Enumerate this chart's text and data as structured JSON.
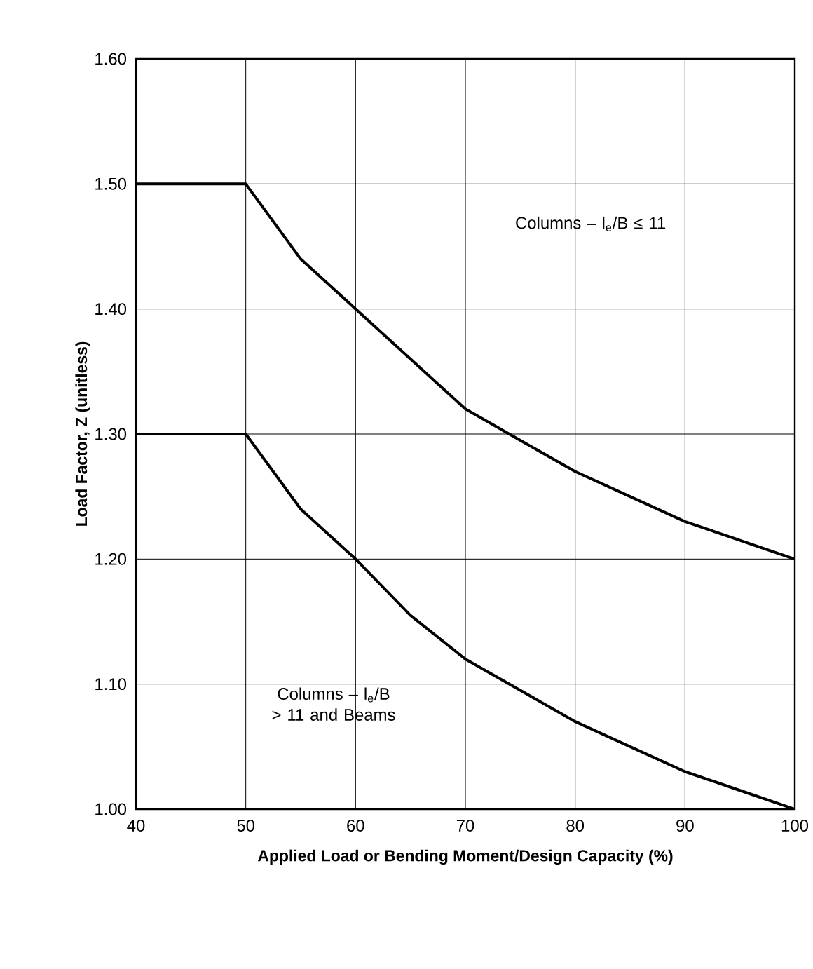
{
  "chart_data": {
    "type": "line",
    "xlabel": "Applied Load or Bending Moment/Design Capacity (%)",
    "ylabel": "Load Factor, Z (unitless)",
    "x": [
      40,
      50,
      55,
      60,
      65,
      70,
      75,
      80,
      85,
      90,
      95,
      100
    ],
    "series": [
      {
        "color": "#000000",
        "values": [
          1.5,
          1.5,
          1.44,
          1.4,
          1.36,
          1.32,
          1.295,
          1.27,
          1.25,
          1.23,
          1.215,
          1.2
        ]
      },
      {
        "color": "#000000",
        "values": [
          1.3,
          1.3,
          1.24,
          1.2,
          1.155,
          1.12,
          1.095,
          1.07,
          1.05,
          1.03,
          1.015,
          1.0
        ]
      }
    ],
    "annotations": [
      "Columns – l$_{e}$/B ≤ 11",
      "Columns – l$_{e}$/B > 11 and Beams"
    ],
    "xlim": [
      40,
      100
    ],
    "ylim": [
      1.0,
      1.6
    ],
    "xticks": [
      40,
      50,
      60,
      70,
      80,
      90,
      100
    ],
    "yticks": [
      {
        "value": 1.0,
        "label": "1.00"
      },
      {
        "value": 1.1,
        "label": "1.10"
      },
      {
        "value": 1.2,
        "label": "1.20"
      },
      {
        "value": 1.3,
        "label": "1.30"
      },
      {
        "value": 1.4,
        "label": "1.40"
      },
      {
        "value": 1.5,
        "label": "1.50"
      },
      {
        "value": 1.6,
        "label": "1.60"
      }
    ],
    "grid": true,
    "legend": false,
    "marker": "none",
    "line_style": "solid"
  }
}
